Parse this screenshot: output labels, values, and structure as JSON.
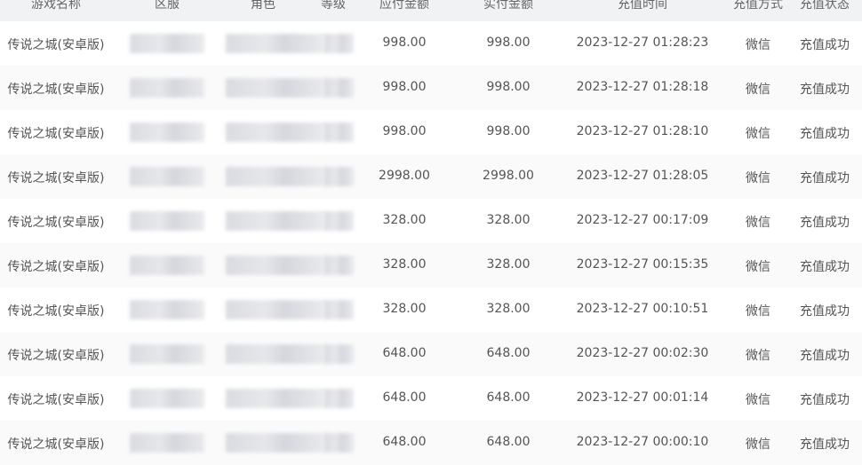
{
  "table": {
    "headers": [
      "游戏名称",
      "区服",
      "角色",
      "等级",
      "应付金额",
      "实付金额",
      "充值时间",
      "充值方式",
      "充值状态"
    ],
    "rows": [
      {
        "game": "传说之城(安卓版)",
        "due": "998.00",
        "paid": "998.00",
        "time": "2023-12-27 01:28:23",
        "method": "微信",
        "status": "充值成功"
      },
      {
        "game": "传说之城(安卓版)",
        "due": "998.00",
        "paid": "998.00",
        "time": "2023-12-27 01:28:18",
        "method": "微信",
        "status": "充值成功"
      },
      {
        "game": "传说之城(安卓版)",
        "due": "998.00",
        "paid": "998.00",
        "time": "2023-12-27 01:28:10",
        "method": "微信",
        "status": "充值成功"
      },
      {
        "game": "传说之城(安卓版)",
        "due": "2998.00",
        "paid": "2998.00",
        "time": "2023-12-27 01:28:05",
        "method": "微信",
        "status": "充值成功"
      },
      {
        "game": "传说之城(安卓版)",
        "due": "328.00",
        "paid": "328.00",
        "time": "2023-12-27 00:17:09",
        "method": "微信",
        "status": "充值成功"
      },
      {
        "game": "传说之城(安卓版)",
        "due": "328.00",
        "paid": "328.00",
        "time": "2023-12-27 00:15:35",
        "method": "微信",
        "status": "充值成功"
      },
      {
        "game": "传说之城(安卓版)",
        "due": "328.00",
        "paid": "328.00",
        "time": "2023-12-27 00:10:51",
        "method": "微信",
        "status": "充值成功"
      },
      {
        "game": "传说之城(安卓版)",
        "due": "648.00",
        "paid": "648.00",
        "time": "2023-12-27 00:02:30",
        "method": "微信",
        "status": "充值成功"
      },
      {
        "game": "传说之城(安卓版)",
        "due": "648.00",
        "paid": "648.00",
        "time": "2023-12-27 00:01:14",
        "method": "微信",
        "status": "充值成功"
      },
      {
        "game": "传说之城(安卓版)",
        "due": "648.00",
        "paid": "648.00",
        "time": "2023-12-27 00:00:10",
        "method": "微信",
        "status": "充值成功"
      }
    ]
  }
}
